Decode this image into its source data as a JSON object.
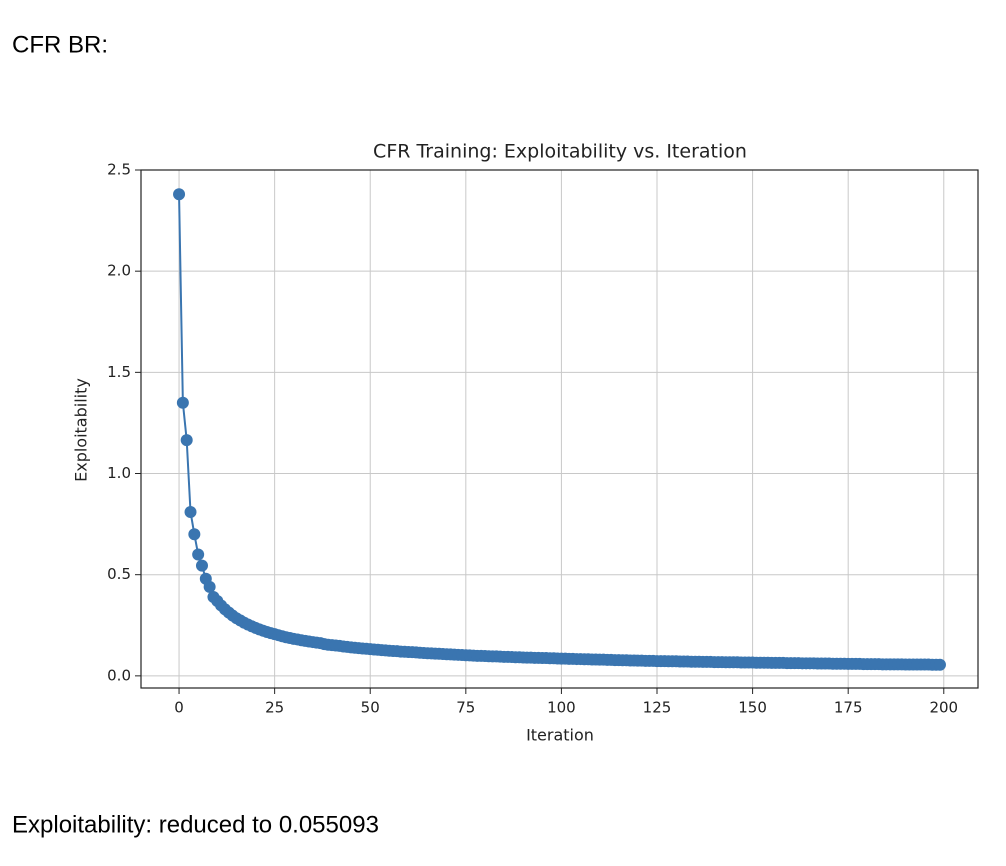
{
  "header": "CFR BR:",
  "footer": "Exploitability: reduced to 0.055093",
  "chart_data": {
    "type": "line",
    "title": "CFR Training: Exploitability vs. Iteration",
    "xlabel": "Iteration",
    "ylabel": "Exploitability",
    "grid": true,
    "marker": "circle",
    "xlim": [
      -9.95,
      208.95
    ],
    "ylim": [
      -0.06,
      2.5
    ],
    "xticks": [
      0,
      25,
      50,
      75,
      100,
      125,
      150,
      175,
      200
    ],
    "yticks": [
      {
        "value": 0,
        "label": "0.0"
      },
      0.5,
      {
        "value": 1,
        "label": "1.0"
      },
      1.5,
      {
        "value": 2,
        "label": "2.0"
      },
      2.5
    ],
    "x": [
      0,
      1,
      2,
      3,
      4,
      5,
      6,
      7,
      8,
      9,
      10,
      11,
      12,
      13,
      14,
      15,
      16,
      17,
      18,
      19,
      20,
      21,
      22,
      23,
      24,
      25,
      26,
      27,
      28,
      29,
      30,
      31,
      32,
      33,
      34,
      35,
      36,
      37,
      38,
      39,
      40,
      41,
      42,
      43,
      44,
      45,
      46,
      47,
      48,
      49,
      50,
      51,
      52,
      53,
      54,
      55,
      56,
      57,
      58,
      59,
      60,
      61,
      62,
      63,
      64,
      65,
      66,
      67,
      68,
      69,
      70,
      71,
      72,
      73,
      74,
      75,
      76,
      77,
      78,
      79,
      80,
      81,
      82,
      83,
      84,
      85,
      86,
      87,
      88,
      89,
      90,
      91,
      92,
      93,
      94,
      95,
      96,
      97,
      98,
      99,
      100,
      101,
      102,
      103,
      104,
      105,
      106,
      107,
      108,
      109,
      110,
      111,
      112,
      113,
      114,
      115,
      116,
      117,
      118,
      119,
      120,
      121,
      122,
      123,
      124,
      125,
      126,
      127,
      128,
      129,
      130,
      131,
      132,
      133,
      134,
      135,
      136,
      137,
      138,
      139,
      140,
      141,
      142,
      143,
      144,
      145,
      146,
      147,
      148,
      149,
      150,
      151,
      152,
      153,
      154,
      155,
      156,
      157,
      158,
      159,
      160,
      161,
      162,
      163,
      164,
      165,
      166,
      167,
      168,
      169,
      170,
      171,
      172,
      173,
      174,
      175,
      176,
      177,
      178,
      179,
      180,
      181,
      182,
      183,
      184,
      185,
      186,
      187,
      188,
      189,
      190,
      191,
      192,
      193,
      194,
      195,
      196,
      197,
      198,
      199
    ],
    "series": [
      {
        "name": "Exploitability",
        "color": "#3a75b0",
        "values": [
          2.38,
          1.35,
          1.165,
          0.81,
          0.7,
          0.6,
          0.545,
          0.48,
          0.44,
          0.39,
          0.37,
          0.348,
          0.329,
          0.313,
          0.298,
          0.285,
          0.274,
          0.263,
          0.254,
          0.245,
          0.237,
          0.23,
          0.223,
          0.217,
          0.211,
          0.206,
          0.201,
          0.196,
          0.191,
          0.187,
          0.183,
          0.18,
          0.176,
          0.173,
          0.17,
          0.167,
          0.164,
          0.162,
          0.157,
          0.154,
          0.152,
          0.15,
          0.148,
          0.145,
          0.143,
          0.141,
          0.139,
          0.137,
          0.135,
          0.134,
          0.132,
          0.13,
          0.129,
          0.127,
          0.126,
          0.124,
          0.123,
          0.122,
          0.12,
          0.119,
          0.118,
          0.117,
          0.116,
          0.114,
          0.113,
          0.112,
          0.111,
          0.11,
          0.109,
          0.108,
          0.107,
          0.106,
          0.105,
          0.104,
          0.103,
          0.102,
          0.101,
          0.1,
          0.099,
          0.099,
          0.098,
          0.097,
          0.096,
          0.096,
          0.095,
          0.094,
          0.094,
          0.093,
          0.092,
          0.092,
          0.091,
          0.09,
          0.09,
          0.089,
          0.089,
          0.088,
          0.088,
          0.087,
          0.087,
          0.086,
          0.085,
          0.085,
          0.084,
          0.084,
          0.083,
          0.083,
          0.082,
          0.082,
          0.081,
          0.081,
          0.08,
          0.08,
          0.079,
          0.079,
          0.078,
          0.078,
          0.077,
          0.077,
          0.076,
          0.076,
          0.075,
          0.075,
          0.074,
          0.074,
          0.074,
          0.073,
          0.073,
          0.073,
          0.072,
          0.072,
          0.072,
          0.071,
          0.071,
          0.071,
          0.07,
          0.07,
          0.07,
          0.069,
          0.069,
          0.069,
          0.068,
          0.068,
          0.068,
          0.067,
          0.067,
          0.067,
          0.067,
          0.066,
          0.066,
          0.066,
          0.066,
          0.065,
          0.065,
          0.065,
          0.065,
          0.064,
          0.064,
          0.064,
          0.064,
          0.063,
          0.063,
          0.063,
          0.063,
          0.062,
          0.062,
          0.062,
          0.062,
          0.061,
          0.061,
          0.061,
          0.061,
          0.06,
          0.06,
          0.06,
          0.06,
          0.059,
          0.059,
          0.059,
          0.059,
          0.058,
          0.058,
          0.058,
          0.058,
          0.058,
          0.057,
          0.057,
          0.057,
          0.057,
          0.057,
          0.057,
          0.056,
          0.056,
          0.056,
          0.056,
          0.056,
          0.056,
          0.056,
          0.055,
          0.055,
          0.055093
        ]
      }
    ]
  }
}
